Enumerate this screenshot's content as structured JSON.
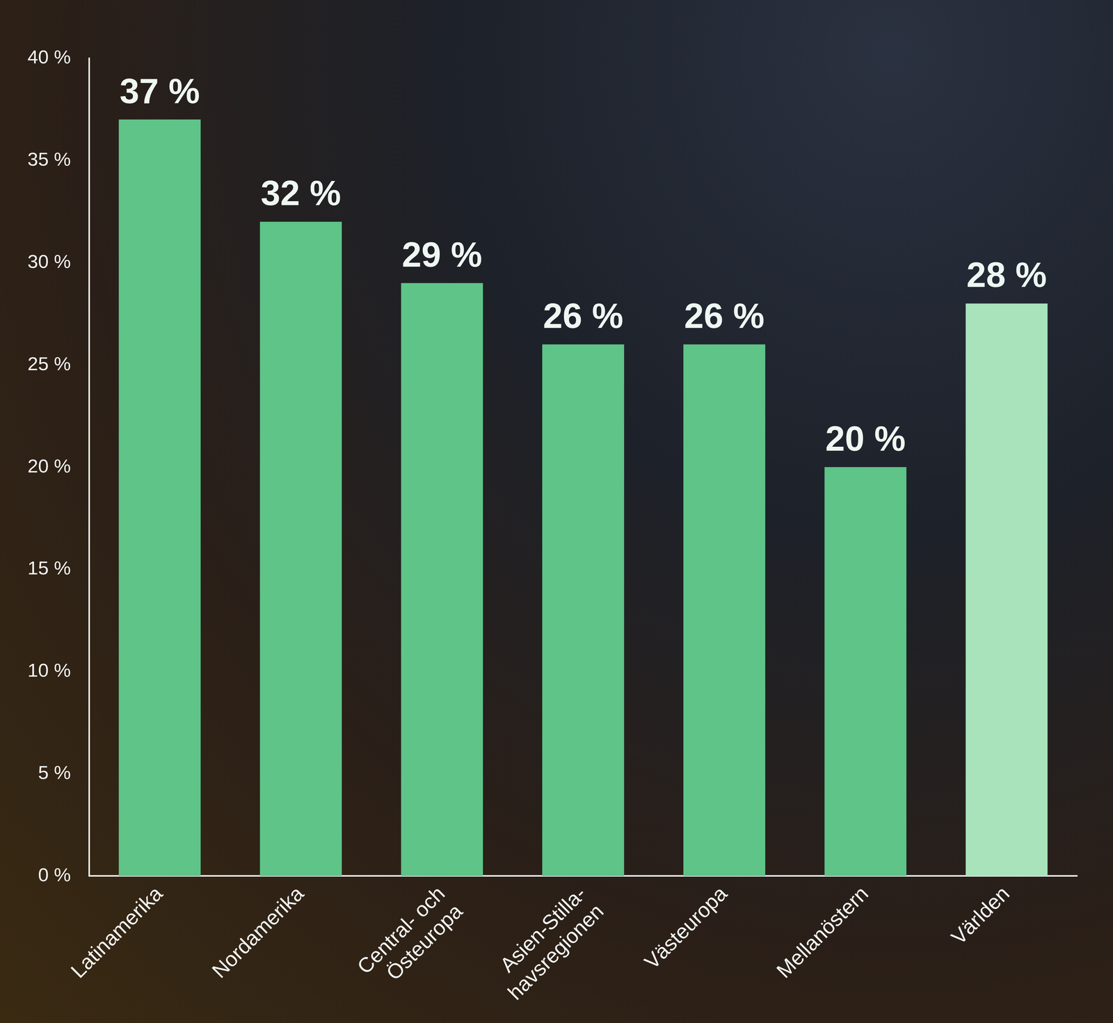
{
  "chart_data": {
    "type": "bar",
    "categories": [
      "Latinamerika",
      "Nordamerika",
      "Central- och Östeuropa",
      "Asien-Stilla-havsregionen",
      "Västeuropa",
      "Mellanöstern",
      "Världen"
    ],
    "values": [
      37,
      32,
      29,
      26,
      26,
      20,
      28
    ],
    "value_labels": [
      "37 %",
      "32 %",
      "29 %",
      "26 %",
      "26 %",
      "20 %",
      "28 %"
    ],
    "colors": [
      "#5ec488",
      "#5ec488",
      "#5ec488",
      "#5ec488",
      "#5ec488",
      "#5ec488",
      "#a8e3bb"
    ],
    "ylim": [
      0,
      40
    ],
    "yticks": [
      {
        "value": 0,
        "label": "0 %"
      },
      {
        "value": 5,
        "label": "5 %"
      },
      {
        "value": 10,
        "label": "10 %"
      },
      {
        "value": 15,
        "label": "15 %"
      },
      {
        "value": 20,
        "label": "20 %"
      },
      {
        "value": 25,
        "label": "25 %"
      },
      {
        "value": 30,
        "label": "30 %"
      },
      {
        "value": 35,
        "label": "35 %"
      },
      {
        "value": 40,
        "label": "40 %"
      }
    ],
    "grid": false,
    "data_labels": true
  }
}
